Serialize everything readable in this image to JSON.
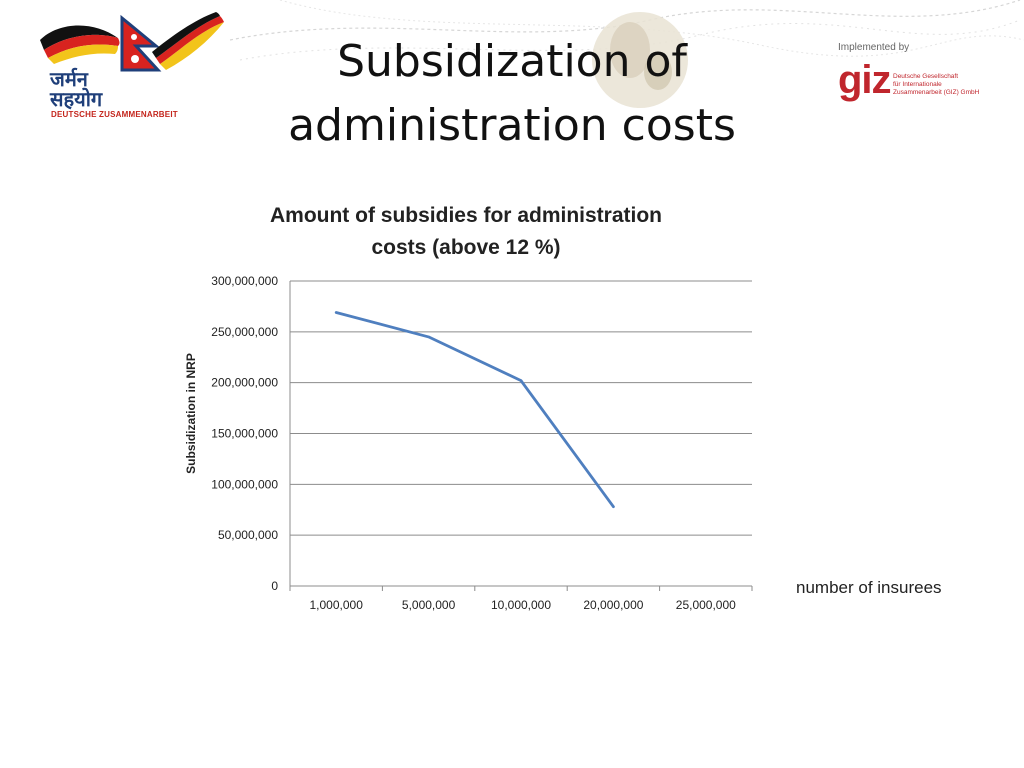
{
  "header": {
    "title_line1": "Subsidization of",
    "title_line2": "administration costs"
  },
  "logo_left": {
    "hindi_line1": "जर्मन",
    "hindi_line2": "सहयोग",
    "subtitle": "DEUTSCHE ZUSAMMENARBEIT"
  },
  "logo_right": {
    "implemented_by": "Implemented by",
    "wordmark": "giz",
    "org_line1": "Deutsche Gesellschaft",
    "org_line2": "für Internationale",
    "org_line3": "Zusammenarbeit (GIZ) GmbH"
  },
  "colors": {
    "series": "#4f7fbf",
    "gridline": "#8c8c8c",
    "axis": "#8c8c8c",
    "giz_red": "#c0262d"
  },
  "chart_data": {
    "type": "line",
    "title_line1": "Amount of subsidies for administration",
    "title_line2": "costs (above 12 %)",
    "ylabel": "Subsidization in NRP",
    "xlabel_outside": "number of insurees",
    "categories": [
      "1,000,000",
      "5,000,000",
      "10,000,000",
      "20,000,000",
      "25,000,000"
    ],
    "series": [
      {
        "values": [
          269000000,
          245000000,
          202000000,
          78000000,
          null
        ]
      }
    ],
    "ylim": [
      0,
      300000000
    ],
    "yticks": [
      0,
      50000000,
      100000000,
      150000000,
      200000000,
      250000000,
      300000000
    ],
    "ytick_labels": [
      "0",
      "50,000,000",
      "100,000,000",
      "150,000,000",
      "200,000,000",
      "250,000,000",
      "300,000,000"
    ],
    "grid": true,
    "legend": "none"
  }
}
